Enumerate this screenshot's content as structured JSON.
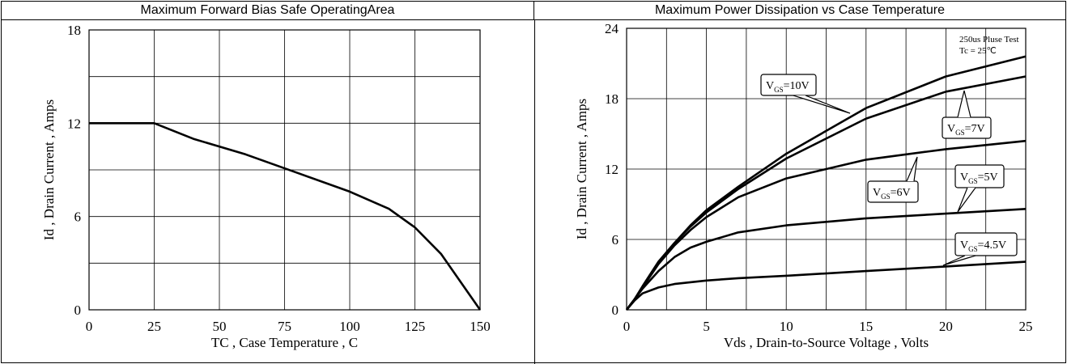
{
  "headers": {
    "left": "Maximum Forward Bias Safe OperatingArea",
    "right": "Maximum Power Dissipation vs Case Temperature"
  },
  "chart_data": [
    {
      "type": "line",
      "xlabel": "TC , Case Temperature , C",
      "ylabel": "Id , Drain Current , Amps",
      "xlim": [
        0,
        150
      ],
      "ylim": [
        0,
        18
      ],
      "x_ticks": [
        "0",
        "25",
        "50",
        "75",
        "100",
        "125",
        "150"
      ],
      "y_ticks": [
        "0",
        "6",
        "12",
        "18"
      ],
      "grid": true,
      "series": [
        {
          "x": [
            0,
            25,
            40,
            60,
            80,
            100,
            115,
            125,
            135,
            150
          ],
          "y": [
            12,
            12,
            11,
            10,
            8.8,
            7.6,
            6.5,
            5.3,
            3.6,
            0
          ]
        }
      ]
    },
    {
      "type": "line",
      "xlabel": "Vds , Drain-to-Source Voltage , Volts",
      "ylabel": "Id , Drain Current , Amps",
      "xlim": [
        0,
        25
      ],
      "ylim": [
        0,
        24
      ],
      "x_ticks": [
        "0",
        "5",
        "10",
        "15",
        "20",
        "25"
      ],
      "y_ticks": [
        "0",
        "6",
        "12",
        "18",
        "24"
      ],
      "grid": true,
      "annotations": [
        "250us Pluse Test",
        "Tc = 25℃"
      ],
      "series": [
        {
          "name": "VGS=10V",
          "x": [
            0,
            0.5,
            1,
            2,
            3,
            4,
            5,
            7,
            10,
            15,
            20,
            25
          ],
          "y": [
            0,
            0.9,
            2,
            4.1,
            5.7,
            7.2,
            8.5,
            10.5,
            13.3,
            17.2,
            19.9,
            21.6
          ]
        },
        {
          "name": "VGS=7V",
          "x": [
            0,
            0.5,
            1,
            2,
            3,
            4,
            5,
            7,
            10,
            15,
            20,
            25
          ],
          "y": [
            0,
            0.9,
            2,
            4.1,
            5.7,
            7.1,
            8.3,
            10.3,
            12.9,
            16.3,
            18.6,
            19.9
          ]
        },
        {
          "name": "VGS=6V",
          "x": [
            0,
            0.5,
            1,
            2,
            3,
            4,
            5,
            7,
            10,
            15,
            20,
            25
          ],
          "y": [
            0,
            0.9,
            1.9,
            3.9,
            5.5,
            6.8,
            7.9,
            9.6,
            11.2,
            12.8,
            13.7,
            14.4
          ]
        },
        {
          "name": "VGS=5V",
          "x": [
            0,
            0.5,
            1,
            2,
            3,
            4,
            5,
            7,
            10,
            15,
            20,
            25
          ],
          "y": [
            0,
            0.9,
            1.8,
            3.3,
            4.5,
            5.3,
            5.8,
            6.6,
            7.2,
            7.8,
            8.2,
            8.6
          ]
        },
        {
          "name": "VGS=4.5V",
          "x": [
            0,
            0.5,
            1,
            2,
            3,
            5,
            7,
            10,
            15,
            20,
            25
          ],
          "y": [
            0,
            0.8,
            1.4,
            1.9,
            2.2,
            2.5,
            2.7,
            2.9,
            3.3,
            3.7,
            4.1
          ]
        }
      ],
      "callouts": [
        {
          "label": "V",
          "sub": "GS",
          "value": "=10V"
        },
        {
          "label": "V",
          "sub": "GS",
          "value": "=7V"
        },
        {
          "label": "V",
          "sub": "GS",
          "value": "=6V"
        },
        {
          "label": "V",
          "sub": "GS",
          "value": "=5V"
        },
        {
          "label": "V",
          "sub": "GS",
          "value": "=4.5V"
        }
      ]
    }
  ]
}
